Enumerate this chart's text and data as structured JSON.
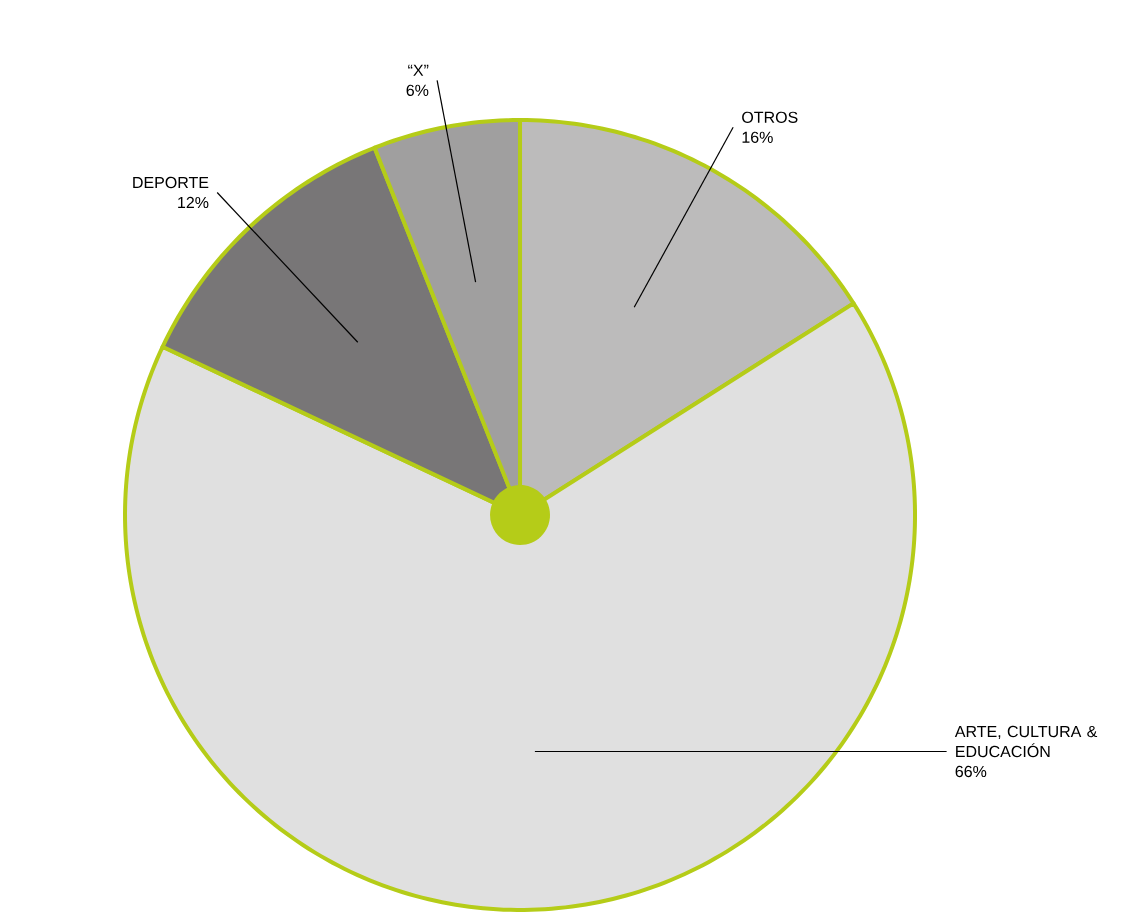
{
  "chart_data": {
    "type": "pie",
    "categories": [
      "OTROS",
      "ARTE, CULTURA & EDUCACIÓN",
      "DEPORTE",
      "“X”"
    ],
    "values": [
      16,
      66,
      12,
      6
    ],
    "colors": [
      "#bcbbbb",
      "#e0e0e0",
      "#787677",
      "#a09f9f"
    ],
    "value_labels": [
      "16%",
      "66%",
      "12%",
      "6%"
    ]
  }
}
